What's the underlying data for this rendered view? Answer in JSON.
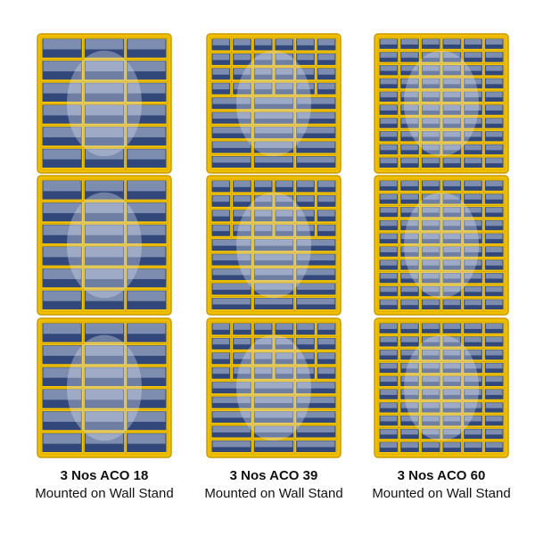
{
  "products": [
    {
      "title": "3 Nos ACO 18",
      "subtitle": "Mounted on Wall Stand"
    },
    {
      "title": "3 Nos ACO 39",
      "subtitle": "Mounted on Wall Stand"
    },
    {
      "title": "3 Nos ACO 60",
      "subtitle": "Mounted on Wall Stand"
    }
  ]
}
